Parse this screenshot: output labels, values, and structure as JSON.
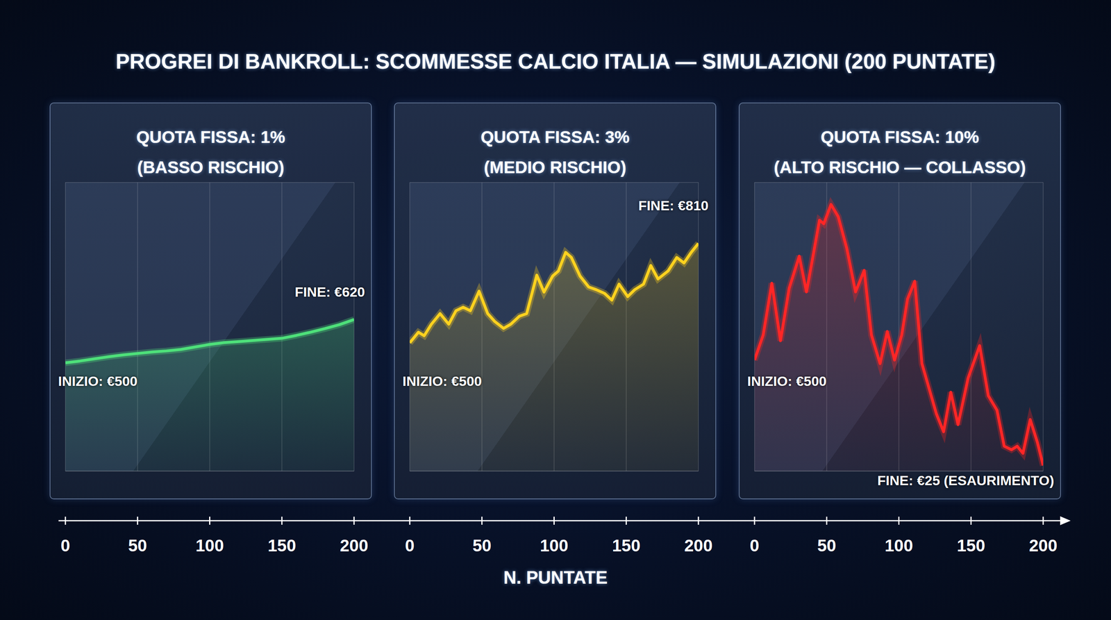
{
  "title": "PROGREI DI BANKROLL: SCOMMESSE CALCIO ITALIA — SIMULAZIONI (200 PUNTATE)",
  "xlabel": "N. PUNTATE",
  "chart_data": [
    {
      "type": "line",
      "title": "QUOTA FISSA: 1%",
      "subtitle": "(BASSO RISCHIO)",
      "annotations": [
        "INIZIO: €500",
        "FINE: €620"
      ],
      "color": "#4ee07a",
      "x": [
        0,
        10,
        20,
        30,
        40,
        50,
        60,
        70,
        80,
        90,
        100,
        110,
        120,
        130,
        140,
        150,
        160,
        170,
        180,
        190,
        200
      ],
      "values": [
        500,
        505,
        511,
        517,
        522,
        526,
        530,
        533,
        537,
        544,
        551,
        556,
        559,
        562,
        565,
        568,
        576,
        585,
        595,
        606,
        620
      ],
      "xlim": [
        0,
        200
      ],
      "xticks": [
        0,
        50,
        100,
        150,
        200
      ],
      "ylim": [
        200,
        1000
      ],
      "yticks": [
        200,
        400,
        600,
        800,
        1000
      ],
      "grid": true,
      "tick_labels": "x"
    },
    {
      "type": "line",
      "title": "QUOTA FISSA: 3%",
      "subtitle": "(MEDIO RISCHIO)",
      "annotations": [
        "INIZIO: €500",
        "FINE: €810"
      ],
      "color": "#ffd21f",
      "x": [
        0,
        6,
        10,
        15,
        21,
        27,
        32,
        37,
        42,
        48,
        54,
        59,
        65,
        70,
        76,
        81,
        88,
        93,
        99,
        103,
        108,
        112,
        118,
        124,
        129,
        135,
        140,
        145,
        151,
        156,
        162,
        167,
        172,
        179,
        185,
        190,
        195,
        200
      ],
      "values": [
        500,
        533,
        522,
        558,
        591,
        558,
        600,
        611,
        600,
        661,
        591,
        566,
        545,
        558,
        583,
        591,
        711,
        658,
        708,
        724,
        782,
        766,
        708,
        674,
        666,
        654,
        633,
        683,
        644,
        666,
        683,
        741,
        699,
        724,
        766,
        749,
        782,
        810
      ],
      "xlim": [
        0,
        200
      ],
      "xticks": [
        0,
        50,
        100,
        150,
        200
      ],
      "ylim": [
        100,
        1000
      ],
      "yticks": [
        100,
        400,
        700,
        1000
      ],
      "grid": true,
      "tick_labels": "x"
    },
    {
      "type": "line",
      "title": "QUOTA FISSA: 10%",
      "subtitle": "(ALTO RISCHIO — COLLASSO)",
      "annotations": [
        "INIZIO: €500",
        "FINE: €25 (ESAURIMENTO)"
      ],
      "color": "#ff2626",
      "x": [
        0,
        6,
        12,
        18,
        24,
        31,
        36,
        41,
        45,
        48,
        53,
        58,
        64,
        70,
        76,
        81,
        87,
        92,
        97,
        102,
        106,
        111,
        116,
        121,
        126,
        131,
        136,
        141,
        148,
        156,
        162,
        168,
        173,
        178,
        182,
        186,
        191,
        196,
        200
      ],
      "values": [
        500,
        613,
        846,
        587,
        823,
        968,
        807,
        985,
        1130,
        1114,
        1201,
        1146,
        1001,
        807,
        904,
        613,
        484,
        629,
        500,
        613,
        775,
        855,
        484,
        371,
        258,
        177,
        355,
        209,
        419,
        565,
        339,
        274,
        112,
        96,
        112,
        80,
        232,
        129,
        25
      ],
      "xlim": [
        0,
        200
      ],
      "xticks": [
        0,
        50,
        100,
        150,
        200
      ],
      "ylim": [
        0,
        1300
      ],
      "yticks": [
        0,
        260,
        520,
        780,
        1040,
        1300
      ],
      "grid": true,
      "tick_labels": "x"
    }
  ]
}
